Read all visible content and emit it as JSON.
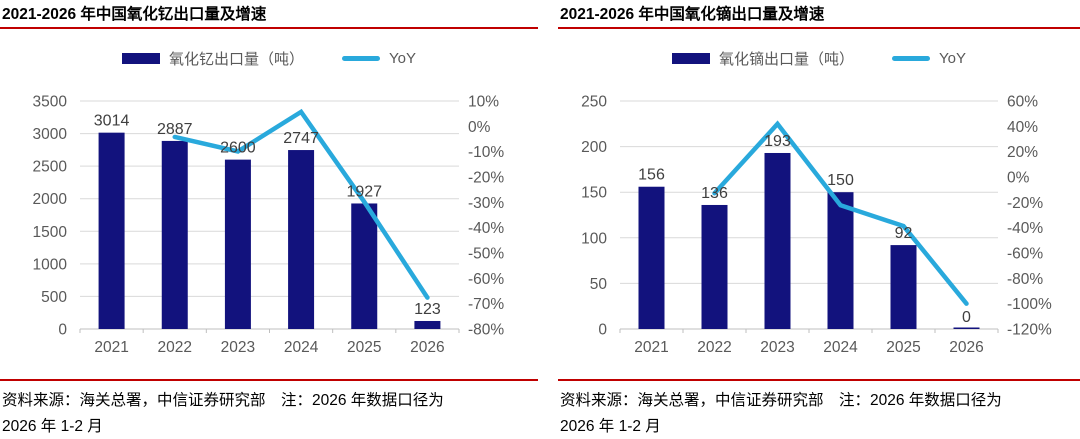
{
  "chart_data": [
    {
      "type": "bar",
      "combo": "bar+line",
      "title": "2021-2026 年中国氧化钇出口量及增速",
      "categories": [
        "2021",
        "2022",
        "2023",
        "2024",
        "2025",
        "2026"
      ],
      "series": [
        {
          "name": "氧化钇出口量（吨）",
          "type": "bar",
          "axis": "left",
          "unit": "吨",
          "values": [
            3014,
            2887,
            2600,
            2747,
            1927,
            123
          ]
        },
        {
          "name": "YoY",
          "type": "line",
          "axis": "right",
          "unit": "%",
          "values": [
            null,
            -4.2,
            -9.9,
            5.7,
            -29.8,
            -67.6
          ]
        }
      ],
      "y_left": {
        "min": 0,
        "max": 3500,
        "step": 500
      },
      "y_right": {
        "min": -80,
        "max": 10,
        "step": 10,
        "unit": "%"
      },
      "legend_position": "top",
      "grid": "horizontal",
      "source_line1": "资料来源：海关总署，中信证券研究部　注：2026 年数据口径为",
      "source_line2": "2026 年 1-2 月"
    },
    {
      "type": "bar",
      "combo": "bar+line",
      "title": "2021-2026 年中国氧化镝出口量及增速",
      "categories": [
        "2021",
        "2022",
        "2023",
        "2024",
        "2025",
        "2026"
      ],
      "series": [
        {
          "name": "氧化镝出口量（吨）",
          "type": "bar",
          "axis": "left",
          "unit": "吨",
          "values": [
            156,
            136,
            193,
            150,
            92,
            0
          ]
        },
        {
          "name": "YoY",
          "type": "line",
          "axis": "right",
          "unit": "%",
          "values": [
            null,
            -12.8,
            41.9,
            -22.3,
            -38.7,
            -100
          ]
        }
      ],
      "y_left": {
        "min": 0,
        "max": 250,
        "step": 50
      },
      "y_right": {
        "min": -120,
        "max": 60,
        "step": 20,
        "unit": "%"
      },
      "legend_position": "top",
      "grid": "horizontal",
      "source_line1": "资料来源：海关总署，中信证券研究部　注：2026 年数据口径为",
      "source_line2": "2026 年 1-2 月"
    }
  ],
  "colors": {
    "bar": "#12127D",
    "line": "#29A9DC",
    "accent_red": "#C00000",
    "gridline": "#D9D9D9",
    "axis_line": "#BFBFBF",
    "axis_text": "#595959",
    "data_label": "#3F3F3F"
  }
}
